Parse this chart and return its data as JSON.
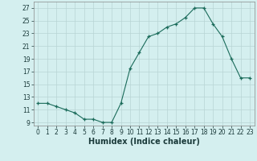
{
  "x": [
    0,
    1,
    2,
    3,
    4,
    5,
    6,
    7,
    8,
    9,
    10,
    11,
    12,
    13,
    14,
    15,
    16,
    17,
    18,
    19,
    20,
    21,
    22,
    23
  ],
  "y": [
    12,
    12,
    11.5,
    11,
    10.5,
    9.5,
    9.5,
    9,
    9,
    12,
    17.5,
    20,
    22.5,
    23,
    24,
    24.5,
    25.5,
    27,
    27,
    24.5,
    22.5,
    19,
    16,
    16
  ],
  "xlabel": "Humidex (Indice chaleur)",
  "xlim": [
    -0.5,
    23.5
  ],
  "ylim": [
    8.5,
    28
  ],
  "yticks": [
    9,
    11,
    13,
    15,
    17,
    19,
    21,
    23,
    25,
    27
  ],
  "xticks": [
    0,
    1,
    2,
    3,
    4,
    5,
    6,
    7,
    8,
    9,
    10,
    11,
    12,
    13,
    14,
    15,
    16,
    17,
    18,
    19,
    20,
    21,
    22,
    23
  ],
  "xtick_labels": [
    "0",
    "1",
    "2",
    "3",
    "4",
    "5",
    "6",
    "7",
    "8",
    "9",
    "10",
    "11",
    "12",
    "13",
    "14",
    "15",
    "16",
    "17",
    "18",
    "19",
    "20",
    "21",
    "22",
    "23"
  ],
  "line_color": "#1a6b5a",
  "marker": "+",
  "bg_color": "#d4efef",
  "grid_color": "#b8d4d4",
  "tick_label_fontsize": 5.5,
  "xlabel_fontsize": 7
}
